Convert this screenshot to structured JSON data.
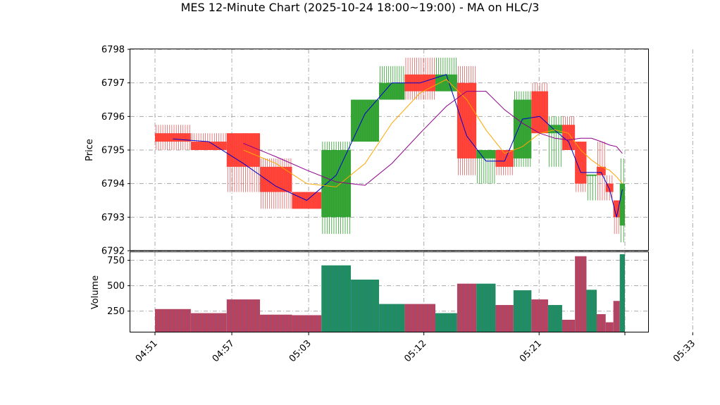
{
  "chart_data": {
    "type": "candlestick",
    "title": "MES 12-Minute Chart (2025-10-24 18:00~19:00) - MA on HLC/3",
    "price_panel": {
      "ylabel": "Price",
      "ylim": [
        6792,
        6798
      ],
      "yticks": [
        "6792",
        "6793",
        "6794",
        "6795",
        "6796",
        "6797",
        "6798"
      ],
      "grid": true
    },
    "volume_panel": {
      "ylabel": "Volume",
      "ylim": [
        40,
        830
      ],
      "yticks": [
        "250",
        "500",
        "750"
      ],
      "grid": true
    },
    "x_axis": {
      "tick_labels": [
        "04:51",
        "04:57",
        "05:03",
        "05:12",
        "05:21",
        "05:33"
      ],
      "tick_times": [
        0,
        6,
        12,
        21,
        30,
        42
      ]
    },
    "colors": {
      "up": "#2ca02c",
      "down": "#ff3b30",
      "wick_up": "#2ca02c",
      "wick_down": "#e06060",
      "vol_up": "#1f8f5c",
      "vol_down": "#c0405a",
      "ma_fast": "#0000cc",
      "ma_mid": "#ffa500",
      "ma_slow": "#8b008b"
    },
    "candles": [
      {
        "t0": 0,
        "t1": 2.8,
        "open": 6795.5,
        "high": 6795.75,
        "low": 6795.0,
        "close": 6795.25,
        "volume": 270
      },
      {
        "t0": 2.8,
        "t1": 5.6,
        "open": 6795.25,
        "high": 6795.5,
        "low": 6795.0,
        "close": 6795.0,
        "volume": 230
      },
      {
        "t0": 5.6,
        "t1": 8.2,
        "open": 6795.5,
        "high": 6795.5,
        "low": 6793.75,
        "close": 6794.5,
        "volume": 365
      },
      {
        "t0": 8.2,
        "t1": 10.7,
        "open": 6794.5,
        "high": 6794.75,
        "low": 6793.25,
        "close": 6793.75,
        "volume": 215
      },
      {
        "t0": 10.7,
        "t1": 13.0,
        "open": 6793.75,
        "high": 6793.75,
        "low": 6793.25,
        "close": 6793.25,
        "volume": 210
      },
      {
        "t0": 13.0,
        "t1": 15.3,
        "open": 6793.0,
        "high": 6795.25,
        "low": 6792.5,
        "close": 6795.0,
        "volume": 700
      },
      {
        "t0": 15.3,
        "t1": 17.5,
        "open": 6795.25,
        "high": 6796.5,
        "low": 6795.25,
        "close": 6796.5,
        "volume": 560
      },
      {
        "t0": 17.5,
        "t1": 19.5,
        "open": 6796.5,
        "high": 6797.5,
        "low": 6796.5,
        "close": 6797.0,
        "volume": 320
      },
      {
        "t0": 19.5,
        "t1": 21.9,
        "open": 6797.25,
        "high": 6797.75,
        "low": 6796.5,
        "close": 6796.75,
        "volume": 320
      },
      {
        "t0": 21.9,
        "t1": 23.6,
        "open": 6796.75,
        "high": 6797.75,
        "low": 6796.75,
        "close": 6797.25,
        "volume": 230
      },
      {
        "t0": 23.6,
        "t1": 25.1,
        "open": 6797.0,
        "high": 6797.5,
        "low": 6794.25,
        "close": 6794.75,
        "volume": 520
      },
      {
        "t0": 25.1,
        "t1": 26.6,
        "open": 6794.75,
        "high": 6795.0,
        "low": 6794.0,
        "close": 6795.0,
        "volume": 520
      },
      {
        "t0": 26.6,
        "t1": 28.0,
        "open": 6795.0,
        "high": 6795.0,
        "low": 6794.25,
        "close": 6794.5,
        "volume": 310
      },
      {
        "t0": 28.0,
        "t1": 29.4,
        "open": 6794.75,
        "high": 6796.75,
        "low": 6794.5,
        "close": 6796.5,
        "volume": 455
      },
      {
        "t0": 29.4,
        "t1": 30.7,
        "open": 6796.75,
        "high": 6797.0,
        "low": 6795.5,
        "close": 6795.5,
        "volume": 365
      },
      {
        "t0": 30.7,
        "t1": 31.8,
        "open": 6795.5,
        "high": 6796.0,
        "low": 6794.5,
        "close": 6795.75,
        "volume": 310
      },
      {
        "t0": 31.8,
        "t1": 32.8,
        "open": 6795.75,
        "high": 6796.0,
        "low": 6795.0,
        "close": 6795.0,
        "volume": 165
      },
      {
        "t0": 32.8,
        "t1": 33.7,
        "open": 6795.25,
        "high": 6795.25,
        "low": 6793.75,
        "close": 6794.0,
        "volume": 790
      },
      {
        "t0": 33.7,
        "t1": 34.5,
        "open": 6794.25,
        "high": 6794.25,
        "low": 6793.5,
        "close": 6794.25,
        "volume": 460
      },
      {
        "t0": 34.5,
        "t1": 35.2,
        "open": 6794.5,
        "high": 6795.25,
        "low": 6793.5,
        "close": 6794.25,
        "volume": 220
      },
      {
        "t0": 35.2,
        "t1": 35.8,
        "open": 6794.0,
        "high": 6794.25,
        "low": 6793.5,
        "close": 6793.75,
        "volume": 140
      },
      {
        "t0": 35.8,
        "t1": 36.3,
        "open": 6793.5,
        "high": 6793.5,
        "low": 6792.5,
        "close": 6793.0,
        "volume": 350
      },
      {
        "t0": 36.3,
        "t1": 36.7,
        "open": 6792.75,
        "high": 6794.75,
        "low": 6792.25,
        "close": 6794.0,
        "volume": 810
      }
    ],
    "ma_series": [
      {
        "key": "ma_fast",
        "points": [
          [
            1.4,
            6795.33
          ],
          [
            4.2,
            6795.25
          ],
          [
            6.9,
            6794.6
          ],
          [
            9.45,
            6793.92
          ],
          [
            11.85,
            6793.5
          ],
          [
            14.15,
            6794.25
          ],
          [
            16.4,
            6796.08
          ],
          [
            18.5,
            6797.0
          ],
          [
            20.7,
            6797.0
          ],
          [
            22.75,
            6797.25
          ],
          [
            24.35,
            6795.42
          ],
          [
            25.85,
            6794.67
          ],
          [
            27.3,
            6794.67
          ],
          [
            28.7,
            6795.92
          ],
          [
            30.05,
            6796.0
          ],
          [
            31.25,
            6795.58
          ],
          [
            32.3,
            6795.25
          ],
          [
            33.25,
            6794.33
          ],
          [
            34.1,
            6794.33
          ],
          [
            34.85,
            6794.33
          ],
          [
            35.5,
            6793.83
          ],
          [
            36.05,
            6793.0
          ],
          [
            36.5,
            6793.83
          ]
        ]
      },
      {
        "key": "ma_mid",
        "points": [
          [
            6.9,
            6795.0
          ],
          [
            9.45,
            6794.6
          ],
          [
            11.85,
            6794.0
          ],
          [
            14.15,
            6793.9
          ],
          [
            16.4,
            6794.6
          ],
          [
            18.5,
            6795.8
          ],
          [
            20.7,
            6796.7
          ],
          [
            22.75,
            6797.1
          ],
          [
            24.35,
            6796.5
          ],
          [
            25.85,
            6795.6
          ],
          [
            27.3,
            6794.9
          ],
          [
            28.7,
            6795.1
          ],
          [
            30.05,
            6795.5
          ],
          [
            31.25,
            6795.6
          ],
          [
            32.3,
            6795.5
          ],
          [
            33.25,
            6795.0
          ],
          [
            34.1,
            6794.7
          ],
          [
            34.85,
            6794.5
          ],
          [
            35.5,
            6794.4
          ],
          [
            36.05,
            6794.2
          ],
          [
            36.5,
            6794.0
          ]
        ]
      },
      {
        "key": "ma_slow",
        "points": [
          [
            6.9,
            6795.2
          ],
          [
            9.45,
            6794.8
          ],
          [
            11.85,
            6794.4
          ],
          [
            14.15,
            6794.05
          ],
          [
            16.4,
            6793.95
          ],
          [
            18.5,
            6794.6
          ],
          [
            20.7,
            6795.5
          ],
          [
            22.75,
            6796.3
          ],
          [
            24.35,
            6796.75
          ],
          [
            25.85,
            6796.75
          ],
          [
            27.3,
            6796.2
          ],
          [
            28.7,
            6795.8
          ],
          [
            30.05,
            6795.5
          ],
          [
            31.25,
            6795.35
          ],
          [
            32.3,
            6795.3
          ],
          [
            33.25,
            6795.35
          ],
          [
            34.1,
            6795.35
          ],
          [
            34.85,
            6795.25
          ],
          [
            35.5,
            6795.15
          ],
          [
            36.05,
            6795.1
          ],
          [
            36.5,
            6794.9
          ]
        ]
      }
    ]
  }
}
